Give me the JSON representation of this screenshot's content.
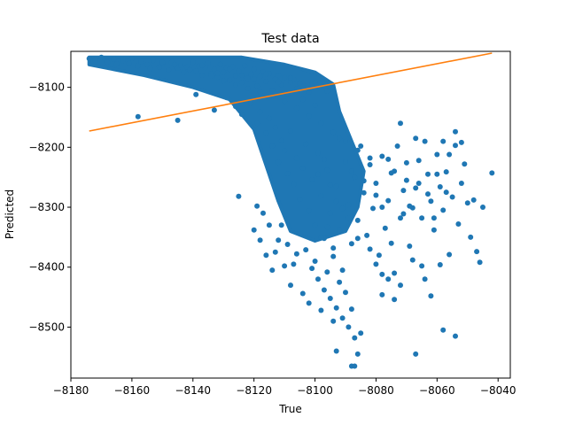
{
  "chart_data": {
    "type": "scatter",
    "title": "Test data",
    "xlabel": "True",
    "ylabel": "Predicted",
    "xlim": [
      -8180,
      -8036
    ],
    "ylim": [
      -8585,
      -8040
    ],
    "xticks": [
      -8180,
      -8160,
      -8140,
      -8120,
      -8100,
      -8080,
      -8060,
      -8040
    ],
    "xtick_labels": [
      "−8180",
      "−8160",
      "−8140",
      "−8120",
      "−8100",
      "−8080",
      "−8060",
      "−8040"
    ],
    "yticks": [
      -8100,
      -8200,
      -8300,
      -8400,
      -8500
    ],
    "ytick_labels": [
      "−8100",
      "−8200",
      "−8300",
      "−8400",
      "−8500"
    ],
    "grid": false,
    "series": [
      {
        "kind": "scatter",
        "color": "#1f77b4",
        "points": [
          [
            -8174,
            -8052
          ],
          [
            -8172,
            -8055
          ],
          [
            -8170,
            -8050
          ],
          [
            -8168,
            -8058
          ],
          [
            -8166,
            -8053
          ],
          [
            -8165,
            -8061
          ],
          [
            -8163,
            -8056
          ],
          [
            -8161,
            -8060
          ],
          [
            -8160,
            -8052
          ],
          [
            -8158,
            -8064
          ],
          [
            -8157,
            -8057
          ],
          [
            -8155,
            -8062
          ],
          [
            -8154,
            -8069
          ],
          [
            -8153,
            -8055
          ],
          [
            -8151,
            -8066
          ],
          [
            -8150,
            -8060
          ],
          [
            -8148,
            -8071
          ],
          [
            -8147,
            -8058
          ],
          [
            -8145,
            -8068
          ],
          [
            -8144,
            -8063
          ],
          [
            -8143,
            -8075
          ],
          [
            -8142,
            -8066
          ],
          [
            -8140,
            -8058
          ],
          [
            -8139,
            -8073
          ],
          [
            -8138,
            -8064
          ],
          [
            -8137,
            -8080
          ],
          [
            -8136,
            -8067
          ],
          [
            -8135,
            -8060
          ],
          [
            -8134,
            -8077
          ],
          [
            -8133,
            -8070
          ],
          [
            -8132,
            -8083
          ],
          [
            -8131,
            -8062
          ],
          [
            -8130,
            -8075
          ],
          [
            -8129,
            -8068
          ],
          [
            -8128,
            -8088
          ],
          [
            -8127,
            -8066
          ],
          [
            -8126,
            -8081
          ],
          [
            -8125,
            -8073
          ],
          [
            -8124,
            -8092
          ],
          [
            -8123,
            -8064
          ],
          [
            -8122,
            -8085
          ],
          [
            -8121,
            -8078
          ],
          [
            -8120,
            -8070
          ],
          [
            -8119,
            -8098
          ],
          [
            -8118,
            -8082
          ],
          [
            -8117,
            -8074
          ],
          [
            -8116,
            -8090
          ],
          [
            -8115,
            -8077
          ],
          [
            -8114,
            -8105
          ],
          [
            -8113,
            -8086
          ],
          [
            -8112,
            -8080
          ],
          [
            -8111,
            -8096
          ],
          [
            -8110,
            -8084
          ],
          [
            -8109,
            -8112
          ],
          [
            -8108,
            -8091
          ],
          [
            -8107,
            -8087
          ],
          [
            -8106,
            -8102
          ],
          [
            -8105,
            -8093
          ],
          [
            -8104,
            -8120
          ],
          [
            -8103,
            -8098
          ],
          [
            -8102,
            -8108
          ],
          [
            -8101,
            -8094
          ],
          [
            -8100,
            -8130
          ],
          [
            -8158,
            -8149
          ],
          [
            -8145,
            -8155
          ],
          [
            -8139,
            -8112
          ],
          [
            -8133,
            -8138
          ],
          [
            -8129,
            -8117
          ],
          [
            -8126,
            -8132
          ],
          [
            -8124,
            -8145
          ],
          [
            -8121,
            -8127
          ],
          [
            -8119,
            -8160
          ],
          [
            -8118,
            -8141
          ],
          [
            -8116,
            -8176
          ],
          [
            -8115,
            -8152
          ],
          [
            -8114,
            -8198
          ],
          [
            -8113,
            -8167
          ],
          [
            -8112,
            -8225
          ],
          [
            -8111,
            -8189
          ],
          [
            -8110,
            -8206
          ],
          [
            -8109,
            -8244
          ],
          [
            -8108,
            -8173
          ],
          [
            -8107,
            -8262
          ],
          [
            -8106,
            -8218
          ],
          [
            -8105,
            -8287
          ],
          [
            -8104,
            -8235
          ],
          [
            -8103,
            -8195
          ],
          [
            -8102,
            -8306
          ],
          [
            -8101,
            -8254
          ],
          [
            -8100,
            -8330
          ],
          [
            -8099,
            -8210
          ],
          [
            -8098,
            -8281
          ],
          [
            -8097,
            -8352
          ],
          [
            -8096,
            -8238
          ],
          [
            -8095,
            -8310
          ],
          [
            -8094,
            -8382
          ],
          [
            -8093,
            -8265
          ],
          [
            -8092,
            -8339
          ],
          [
            -8091,
            -8405
          ],
          [
            -8090,
            -8224
          ],
          [
            -8089,
            -8296
          ],
          [
            -8088,
            -8361
          ],
          [
            -8087,
            -8250
          ],
          [
            -8086,
            -8322
          ],
          [
            -8085,
            -8198
          ],
          [
            -8084,
            -8276
          ],
          [
            -8083,
            -8347
          ],
          [
            -8082,
            -8229
          ],
          [
            -8081,
            -8302
          ],
          [
            -8080,
            -8260
          ],
          [
            -8079,
            -8380
          ],
          [
            -8078,
            -8215
          ],
          [
            -8077,
            -8335
          ],
          [
            -8076,
            -8289
          ],
          [
            -8075,
            -8243
          ],
          [
            -8074,
            -8410
          ],
          [
            -8073,
            -8198
          ],
          [
            -8072,
            -8318
          ],
          [
            -8071,
            -8272
          ],
          [
            -8070,
            -8226
          ],
          [
            -8069,
            -8365
          ],
          [
            -8068,
            -8301
          ],
          [
            -8067,
            -8185
          ],
          [
            -8111,
            -8330
          ],
          [
            -8109,
            -8362
          ],
          [
            -8107,
            -8395
          ],
          [
            -8105,
            -8344
          ],
          [
            -8103,
            -8371
          ],
          [
            -8101,
            -8402
          ],
          [
            -8099,
            -8420
          ],
          [
            -8097,
            -8438
          ],
          [
            -8095,
            -8452
          ],
          [
            -8093,
            -8468
          ],
          [
            -8091,
            -8485
          ],
          [
            -8089,
            -8500
          ],
          [
            -8087,
            -8518
          ],
          [
            -8112,
            -8355
          ],
          [
            -8110,
            -8398
          ],
          [
            -8108,
            -8430
          ],
          [
            -8106,
            -8378
          ],
          [
            -8104,
            -8444
          ],
          [
            -8102,
            -8460
          ],
          [
            -8100,
            -8390
          ],
          [
            -8098,
            -8472
          ],
          [
            -8096,
            -8408
          ],
          [
            -8094,
            -8490
          ],
          [
            -8092,
            -8425
          ],
          [
            -8090,
            -8442
          ],
          [
            -8088,
            -8470
          ],
          [
            -8086,
            -8545
          ],
          [
            -8085,
            -8510
          ],
          [
            -8088,
            -8565
          ],
          [
            -8087,
            -8565
          ],
          [
            -8093,
            -8540
          ],
          [
            -8113,
            -8375
          ],
          [
            -8114,
            -8405
          ],
          [
            -8115,
            -8330
          ],
          [
            -8116,
            -8380
          ],
          [
            -8118,
            -8355
          ],
          [
            -8117,
            -8310
          ],
          [
            -8120,
            -8338
          ],
          [
            -8125,
            -8282
          ],
          [
            -8119,
            -8298
          ],
          [
            -8067,
            -8268
          ],
          [
            -8066,
            -8222
          ],
          [
            -8065,
            -8318
          ],
          [
            -8064,
            -8190
          ],
          [
            -8063,
            -8245
          ],
          [
            -8062,
            -8290
          ],
          [
            -8061,
            -8338
          ],
          [
            -8060,
            -8212
          ],
          [
            -8059,
            -8266
          ],
          [
            -8058,
            -8305
          ],
          [
            -8057,
            -8241
          ],
          [
            -8056,
            -8379
          ],
          [
            -8055,
            -8283
          ],
          [
            -8054,
            -8197
          ],
          [
            -8053,
            -8328
          ],
          [
            -8052,
            -8260
          ],
          [
            -8051,
            -8228
          ],
          [
            -8050,
            -8293
          ],
          [
            -8049,
            -8350
          ],
          [
            -8048,
            -8288
          ],
          [
            -8047,
            -8374
          ],
          [
            -8046,
            -8392
          ],
          [
            -8045,
            -8300
          ],
          [
            -8042,
            -8243
          ],
          [
            -8054,
            -8174
          ],
          [
            -8058,
            -8190
          ],
          [
            -8060,
            -8245
          ],
          [
            -8063,
            -8278
          ],
          [
            -8065,
            -8398
          ],
          [
            -8068,
            -8388
          ],
          [
            -8070,
            -8255
          ],
          [
            -8072,
            -8160
          ],
          [
            -8075,
            -8360
          ],
          [
            -8076,
            -8420
          ],
          [
            -8078,
            -8446
          ],
          [
            -8064,
            -8420
          ],
          [
            -8062,
            -8448
          ],
          [
            -8058,
            -8505
          ],
          [
            -8054,
            -8515
          ],
          [
            -8067,
            -8545
          ],
          [
            -8072,
            -8430
          ],
          [
            -8074,
            -8454
          ],
          [
            -8069,
            -8298
          ],
          [
            -8071,
            -8311
          ],
          [
            -8066,
            -8260
          ],
          [
            -8061,
            -8318
          ],
          [
            -8057,
            -8275
          ],
          [
            -8059,
            -8396
          ],
          [
            -8056,
            -8212
          ],
          [
            -8052,
            -8192
          ],
          [
            -8150,
            -8058
          ],
          [
            -8146,
            -8062
          ],
          [
            -8141,
            -8071
          ],
          [
            -8137,
            -8063
          ],
          [
            -8132,
            -8076
          ],
          [
            -8128,
            -8070
          ],
          [
            -8124,
            -8080
          ],
          [
            -8120,
            -8086
          ],
          [
            -8116,
            -8078
          ],
          [
            -8112,
            -8091
          ],
          [
            -8108,
            -8084
          ],
          [
            -8104,
            -8099
          ],
          [
            -8100,
            -8092
          ],
          [
            -8096,
            -8106
          ],
          [
            -8134,
            -8081
          ],
          [
            -8130,
            -8089
          ],
          [
            -8126,
            -8096
          ],
          [
            -8122,
            -8102
          ],
          [
            -8118,
            -8108
          ],
          [
            -8114,
            -8115
          ],
          [
            -8110,
            -8123
          ],
          [
            -8106,
            -8135
          ],
          [
            -8102,
            -8148
          ],
          [
            -8098,
            -8160
          ],
          [
            -8094,
            -8175
          ],
          [
            -8090,
            -8190
          ],
          [
            -8086,
            -8205
          ],
          [
            -8082,
            -8218
          ],
          [
            -8097,
            -8220
          ],
          [
            -8099,
            -8245
          ],
          [
            -8095,
            -8263
          ],
          [
            -8093,
            -8290
          ],
          [
            -8091,
            -8302
          ],
          [
            -8089,
            -8318
          ],
          [
            -8096,
            -8333
          ],
          [
            -8098,
            -8351
          ],
          [
            -8094,
            -8368
          ],
          [
            -8092,
            -8185
          ],
          [
            -8088,
            -8240
          ],
          [
            -8084,
            -8256
          ],
          [
            -8080,
            -8280
          ],
          [
            -8078,
            -8300
          ],
          [
            -8076,
            -8220
          ],
          [
            -8074,
            -8240
          ],
          [
            -8086,
            -8352
          ],
          [
            -8082,
            -8370
          ],
          [
            -8080,
            -8395
          ],
          [
            -8078,
            -8412
          ]
        ],
        "label": ""
      },
      {
        "kind": "line",
        "color": "#ff7f0e",
        "points": [
          [
            -8174,
            -8173
          ],
          [
            -8042,
            -8043
          ]
        ],
        "label": ""
      }
    ],
    "density_regions": [
      {
        "polygon": [
          [
            -8174,
            -8050
          ],
          [
            -8140,
            -8050
          ],
          [
            -8124,
            -8050
          ],
          [
            -8110,
            -8062
          ],
          [
            -8100,
            -8075
          ],
          [
            -8094,
            -8095
          ],
          [
            -8092,
            -8140
          ],
          [
            -8088,
            -8190
          ],
          [
            -8084,
            -8240
          ],
          [
            -8086,
            -8300
          ],
          [
            -8090,
            -8340
          ],
          [
            -8100,
            -8356
          ],
          [
            -8108,
            -8340
          ],
          [
            -8112,
            -8290
          ],
          [
            -8116,
            -8230
          ],
          [
            -8120,
            -8170
          ],
          [
            -8128,
            -8120
          ],
          [
            -8140,
            -8100
          ],
          [
            -8156,
            -8080
          ],
          [
            -8174,
            -8062
          ]
        ],
        "color": "#1f77b4"
      }
    ]
  }
}
